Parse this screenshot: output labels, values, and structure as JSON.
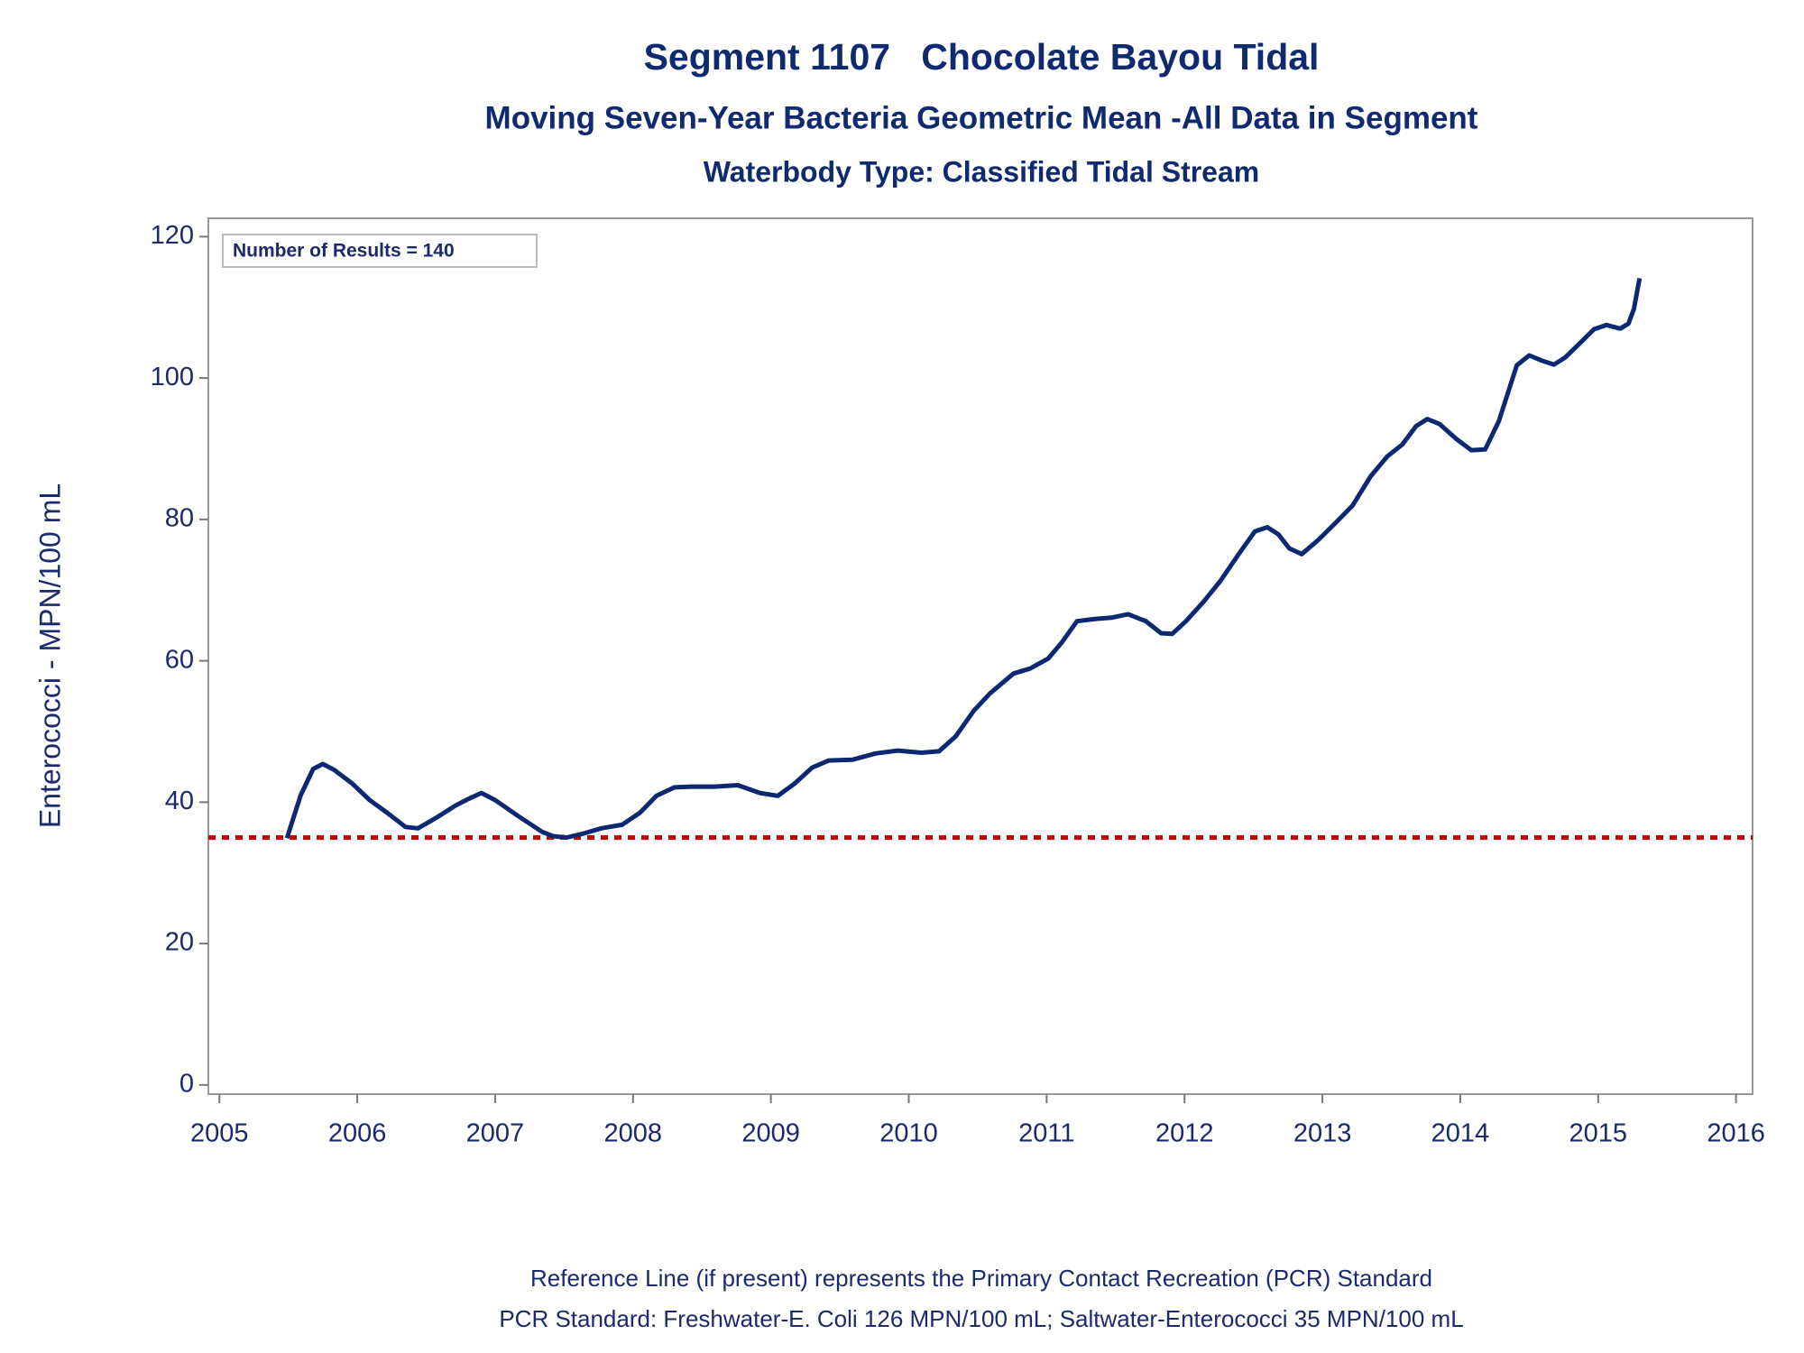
{
  "chart_data": {
    "type": "line",
    "title": "Segment 1107   Chocolate Bayou Tidal",
    "subtitle": "Moving Seven-Year Bacteria Geometric Mean -All Data in Segment",
    "subtitle2": "Waterbody Type: Classified Tidal Stream",
    "ylabel": "Enterococci - MPN/100 mL",
    "annotation": "Number of Results = 140",
    "footnotes": [
      "Reference Line (if present) represents the Primary Contact Recreation (PCR) Standard",
      "PCR Standard: Freshwater-E. Coli 126 MPN/100 mL; Saltwater-Enterococci 35 MPN/100 mL"
    ],
    "reference_line": {
      "value": 35,
      "color": "#cc0000"
    },
    "xlim": [
      2004.92,
      2016.12
    ],
    "xticks": [
      2005,
      2006,
      2007,
      2008,
      2009,
      2010,
      2011,
      2012,
      2013,
      2014,
      2015,
      2016
    ],
    "ylim": [
      -1.3,
      122.6
    ],
    "yticks": [
      0,
      20,
      40,
      60,
      80,
      100,
      120
    ],
    "series": [
      {
        "color": "#0b2870",
        "x": [
          2005.49,
          2005.59,
          2005.68,
          2005.75,
          2005.83,
          2005.96,
          2006.09,
          2006.21,
          2006.35,
          2006.44,
          2006.52,
          2006.59,
          2006.71,
          2006.8,
          2006.9,
          2007.0,
          2007.17,
          2007.34,
          2007.42,
          2007.52,
          2007.63,
          2007.77,
          2007.92,
          2008.05,
          2008.17,
          2008.3,
          2008.42,
          2008.59,
          2008.76,
          2008.92,
          2009.05,
          2009.17,
          2009.3,
          2009.42,
          2009.59,
          2009.76,
          2009.92,
          2010.09,
          2010.22,
          2010.34,
          2010.47,
          2010.59,
          2010.76,
          2010.88,
          2011.01,
          2011.11,
          2011.22,
          2011.34,
          2011.47,
          2011.59,
          2011.72,
          2011.83,
          2011.91,
          2012.01,
          2012.14,
          2012.26,
          2012.39,
          2012.51,
          2012.6,
          2012.68,
          2012.76,
          2012.85,
          2012.97,
          2013.1,
          2013.22,
          2013.35,
          2013.47,
          2013.58,
          2013.68,
          2013.76,
          2013.85,
          2013.97,
          2014.08,
          2014.18,
          2014.28,
          2014.41,
          2014.5,
          2014.6,
          2014.68,
          2014.76,
          2014.85,
          2014.97,
          2015.06,
          2015.16,
          2015.22,
          2015.26,
          2015.3
        ],
        "values": [
          34.9,
          41,
          44.7,
          45.4,
          44.6,
          42.7,
          40.3,
          38.6,
          36.5,
          36.3,
          37.2,
          38,
          39.5,
          40.4,
          41.3,
          40.3,
          38,
          35.8,
          35.2,
          35,
          35.5,
          36.3,
          36.8,
          38.5,
          40.9,
          42.1,
          42.2,
          42.2,
          42.4,
          41.3,
          40.9,
          42.6,
          44.9,
          45.9,
          46,
          46.9,
          47.3,
          47,
          47.2,
          49.3,
          52.9,
          55.4,
          58.2,
          58.9,
          60.3,
          62.6,
          65.6,
          65.9,
          66.1,
          66.6,
          65.6,
          63.9,
          63.8,
          65.6,
          68.4,
          71.3,
          75,
          78.3,
          78.9,
          77.9,
          75.9,
          75.1,
          77.1,
          79.6,
          82,
          86.1,
          88.9,
          90.6,
          93.2,
          94.2,
          93.5,
          91.4,
          89.8,
          89.9,
          93.9,
          101.8,
          103.2,
          102.4,
          101.9,
          102.9,
          104.6,
          106.9,
          107.5,
          107,
          107.7,
          109.8,
          114.1
        ]
      }
    ]
  }
}
